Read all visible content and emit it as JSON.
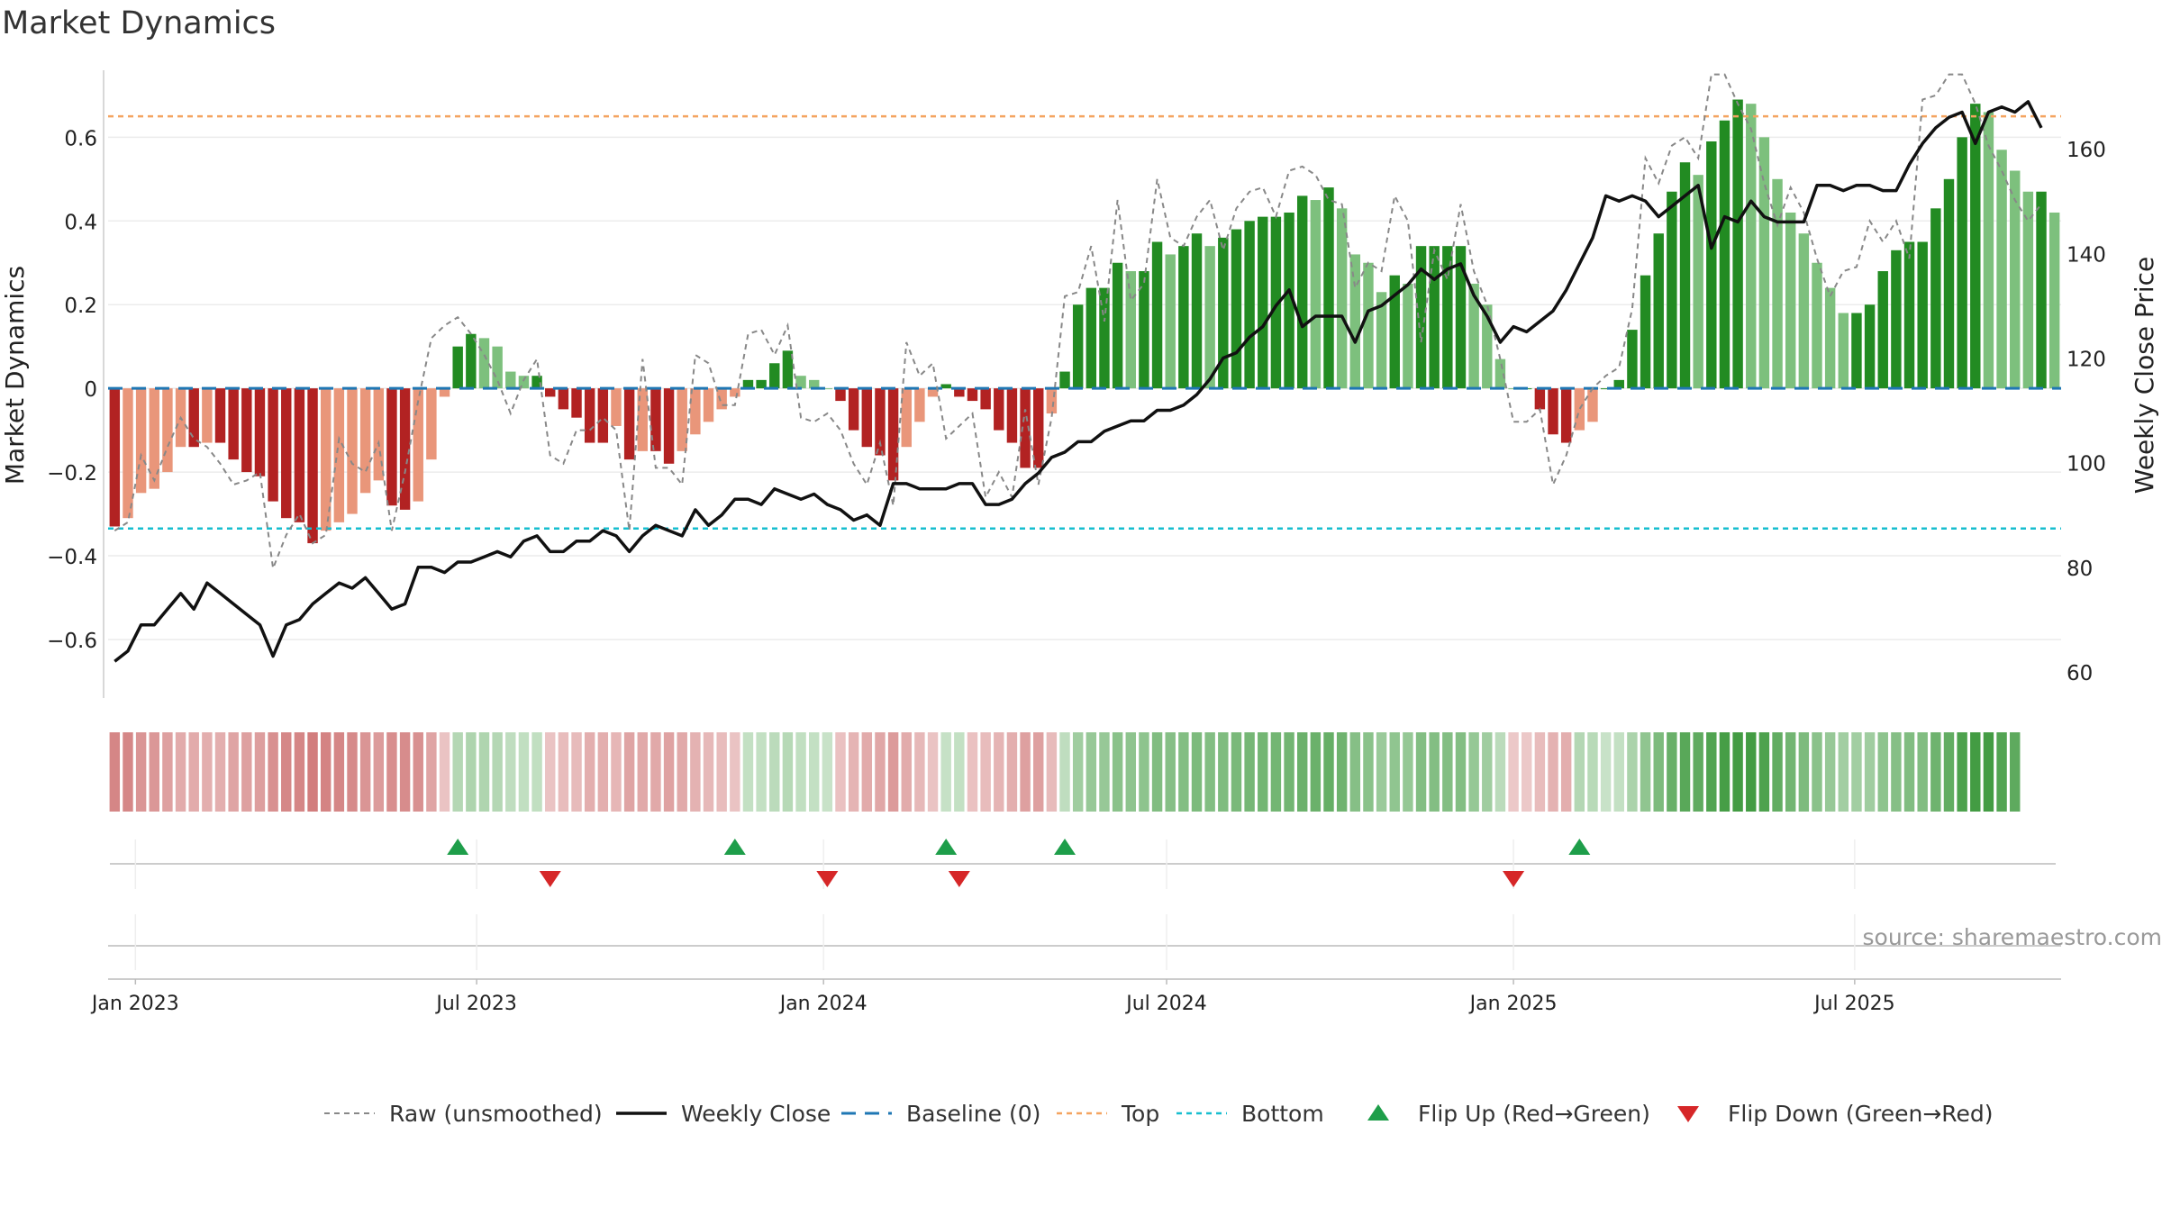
{
  "title": "Market Dynamics",
  "source": "source: sharemaestro.com",
  "colors": {
    "neg_strong": "#b22222",
    "neg_weak": "#e9967a",
    "pos_strong": "#228b22",
    "pos_weak": "#7dc07d",
    "price": "#111111",
    "raw": "#888888",
    "baseline": "#1f77b4",
    "top": "#f4a460",
    "bottom": "#17becf",
    "flip_up": "#1e9e4a",
    "flip_down": "#d62728"
  },
  "chart_data": {
    "type": "bar",
    "ylabel": "Market Dynamics",
    "y2label": "Weekly Close Price",
    "ylim": [
      -0.74,
      0.76
    ],
    "y2lim": [
      55,
      175
    ],
    "yticks": [
      "−0.6",
      "−0.4",
      "−0.2",
      "0",
      "0.2",
      "0.4",
      "0.6"
    ],
    "y2ticks": [
      "60",
      "80",
      "100",
      "120",
      "140",
      "160"
    ],
    "xticks": [
      "Jan 2023",
      "Jul 2023",
      "Jan 2024",
      "Jul 2024",
      "Jan 2025",
      "Jul 2025"
    ],
    "top_level": 0.65,
    "bottom_level": -0.335,
    "start_date": "2022-12-21",
    "dynamics": [
      -0.33,
      -0.31,
      -0.25,
      -0.24,
      -0.2,
      -0.14,
      -0.14,
      -0.13,
      -0.13,
      -0.17,
      -0.2,
      -0.21,
      -0.27,
      -0.31,
      -0.32,
      -0.37,
      -0.34,
      -0.32,
      -0.3,
      -0.25,
      -0.22,
      -0.28,
      -0.29,
      -0.27,
      -0.17,
      -0.02,
      0.1,
      0.13,
      0.12,
      0.1,
      0.04,
      0.03,
      0.03,
      -0.02,
      -0.05,
      -0.07,
      -0.13,
      -0.13,
      -0.09,
      -0.17,
      -0.15,
      -0.15,
      -0.18,
      -0.15,
      -0.11,
      -0.08,
      -0.05,
      -0.02,
      0.02,
      0.02,
      0.06,
      0.09,
      0.03,
      0.02,
      0,
      -0.03,
      -0.1,
      -0.14,
      -0.16,
      -0.22,
      -0.14,
      -0.08,
      -0.02,
      0.01,
      -0.02,
      -0.03,
      -0.05,
      -0.1,
      -0.13,
      -0.19,
      -0.19,
      -0.06,
      0.04,
      0.2,
      0.24,
      0.24,
      0.3,
      0.28,
      0.28,
      0.35,
      0.32,
      0.34,
      0.37,
      0.34,
      0.36,
      0.38,
      0.4,
      0.41,
      0.41,
      0.42,
      0.46,
      0.45,
      0.48,
      0.43,
      0.32,
      0.3,
      0.23,
      0.27,
      0.25,
      0.34,
      0.34,
      0.34,
      0.34,
      0.25,
      0.2,
      0.07,
      0,
      0,
      -0.05,
      -0.11,
      -0.13,
      -0.1,
      -0.08,
      0,
      0.02,
      0.14,
      0.27,
      0.37,
      0.47,
      0.54,
      0.51,
      0.59,
      0.64,
      0.69,
      0.68,
      0.6,
      0.5,
      0.42,
      0.37,
      0.3,
      0.24,
      0.18,
      0.18,
      0.2,
      0.28,
      0.33,
      0.35,
      0.35,
      0.43,
      0.5,
      0.6,
      0.68,
      0.66,
      0.57,
      0.52,
      0.47,
      0.47,
      0.42
    ],
    "raw": [
      -0.34,
      -0.32,
      -0.16,
      -0.22,
      -0.14,
      -0.07,
      -0.12,
      -0.14,
      -0.18,
      -0.23,
      -0.22,
      -0.2,
      -0.43,
      -0.35,
      -0.3,
      -0.37,
      -0.35,
      -0.12,
      -0.18,
      -0.2,
      -0.13,
      -0.34,
      -0.2,
      -0.03,
      0.12,
      0.15,
      0.17,
      0.13,
      0.08,
      0.02,
      -0.06,
      0.02,
      0.07,
      -0.16,
      -0.18,
      -0.1,
      -0.1,
      -0.07,
      -0.1,
      -0.34,
      0.07,
      -0.19,
      -0.19,
      -0.23,
      0.08,
      0.06,
      -0.04,
      -0.04,
      0.13,
      0.14,
      0.08,
      0.15,
      -0.07,
      -0.08,
      -0.06,
      -0.1,
      -0.18,
      -0.23,
      -0.13,
      -0.28,
      0.11,
      0.03,
      0.06,
      -0.12,
      -0.09,
      -0.06,
      -0.26,
      -0.2,
      -0.26,
      -0.05,
      -0.23,
      -0.07,
      0.22,
      0.23,
      0.34,
      0.16,
      0.45,
      0.21,
      0.25,
      0.5,
      0.36,
      0.34,
      0.41,
      0.45,
      0.33,
      0.43,
      0.47,
      0.48,
      0.41,
      0.52,
      0.53,
      0.51,
      0.45,
      0.44,
      0.24,
      0.3,
      0.28,
      0.46,
      0.4,
      0.11,
      0.33,
      0.26,
      0.44,
      0.28,
      0.2,
      0.07,
      -0.08,
      -0.08,
      -0.05,
      -0.23,
      -0.16,
      -0.05,
      0,
      0.03,
      0.05,
      0.19,
      0.55,
      0.49,
      0.58,
      0.6,
      0.55,
      0.75,
      0.75,
      0.68,
      0.62,
      0.49,
      0.39,
      0.48,
      0.42,
      0.31,
      0.22,
      0.28,
      0.29,
      0.4,
      0.35,
      0.4,
      0.31,
      0.69,
      0.7,
      0.75,
      0.75,
      0.68,
      0.58,
      0.52,
      0.45,
      0.4,
      0.44
    ],
    "price": [
      62,
      64,
      69,
      69,
      72,
      75,
      72,
      77,
      75,
      73,
      71,
      69,
      63,
      69,
      70,
      73,
      75,
      77,
      76,
      78,
      75,
      72,
      73,
      80,
      80,
      79,
      81,
      81,
      82,
      83,
      82,
      85,
      86,
      83,
      83,
      85,
      85,
      87,
      86,
      83,
      86,
      88,
      87,
      86,
      91,
      88,
      90,
      93,
      93,
      92,
      95,
      94,
      93,
      94,
      92,
      91,
      89,
      90,
      88,
      96,
      96,
      95,
      95,
      95,
      96,
      96,
      92,
      92,
      93,
      96,
      98,
      101,
      102,
      104,
      104,
      106,
      107,
      108,
      108,
      110,
      110,
      111,
      113,
      116,
      120,
      121,
      124,
      126,
      130,
      133,
      126,
      128,
      128,
      128,
      123,
      129,
      130,
      132,
      134,
      137,
      135,
      137,
      138,
      132,
      128,
      123,
      126,
      125,
      127,
      129,
      133,
      138,
      143,
      151,
      150,
      151,
      150,
      147,
      149,
      151,
      153,
      141,
      147,
      146,
      150,
      147,
      146,
      146,
      146,
      153,
      153,
      152,
      153,
      153,
      152,
      152,
      157,
      161,
      164,
      166,
      167,
      161,
      167,
      168,
      167,
      169,
      164
    ],
    "regime": [
      "r",
      "r",
      "r",
      "r",
      "r",
      "r",
      "r",
      "r",
      "r",
      "r",
      "r",
      "r",
      "r",
      "r",
      "r",
      "r",
      "r",
      "r",
      "r",
      "r",
      "r",
      "r",
      "r",
      "r",
      "r",
      "r",
      "g",
      "g",
      "g",
      "g",
      "g",
      "g",
      "g",
      "r",
      "r",
      "r",
      "r",
      "r",
      "r",
      "r",
      "r",
      "r",
      "r",
      "r",
      "r",
      "r",
      "r",
      "r",
      "g",
      "g",
      "g",
      "g",
      "g",
      "g",
      "g",
      "r",
      "r",
      "r",
      "r",
      "r",
      "r",
      "r",
      "r",
      "g",
      "g",
      "r",
      "r",
      "r",
      "r",
      "r",
      "r",
      "r",
      "g",
      "g",
      "g",
      "g",
      "g",
      "g",
      "g",
      "g",
      "g",
      "g",
      "g",
      "g",
      "g",
      "g",
      "g",
      "g",
      "g",
      "g",
      "g",
      "g",
      "g",
      "g",
      "g",
      "g",
      "g",
      "g",
      "g",
      "g",
      "g",
      "g",
      "g",
      "g",
      "g",
      "g",
      "r",
      "r",
      "r",
      "r",
      "r",
      "g",
      "g",
      "g",
      "g",
      "g",
      "g",
      "g",
      "g",
      "g",
      "g",
      "g",
      "g",
      "g",
      "g",
      "g",
      "g",
      "g",
      "g",
      "g",
      "g",
      "g",
      "g",
      "g",
      "g",
      "g",
      "g",
      "g",
      "g",
      "g",
      "g",
      "g",
      "g",
      "g",
      "g"
    ],
    "flip_up_weeks": [
      26,
      47,
      63,
      72,
      111
    ],
    "flip_down_weeks": [
      33,
      54,
      64,
      106
    ]
  },
  "legend": [
    {
      "key": "raw",
      "label": "Raw (unsmoothed)"
    },
    {
      "key": "close",
      "label": "Weekly Close"
    },
    {
      "key": "baseline",
      "label": "Baseline (0)"
    },
    {
      "key": "top",
      "label": "Top"
    },
    {
      "key": "bottom",
      "label": "Bottom"
    },
    {
      "key": "flip_up",
      "label": "Flip Up (Red→Green)"
    },
    {
      "key": "flip_down",
      "label": "Flip Down (Green→Red)"
    }
  ]
}
